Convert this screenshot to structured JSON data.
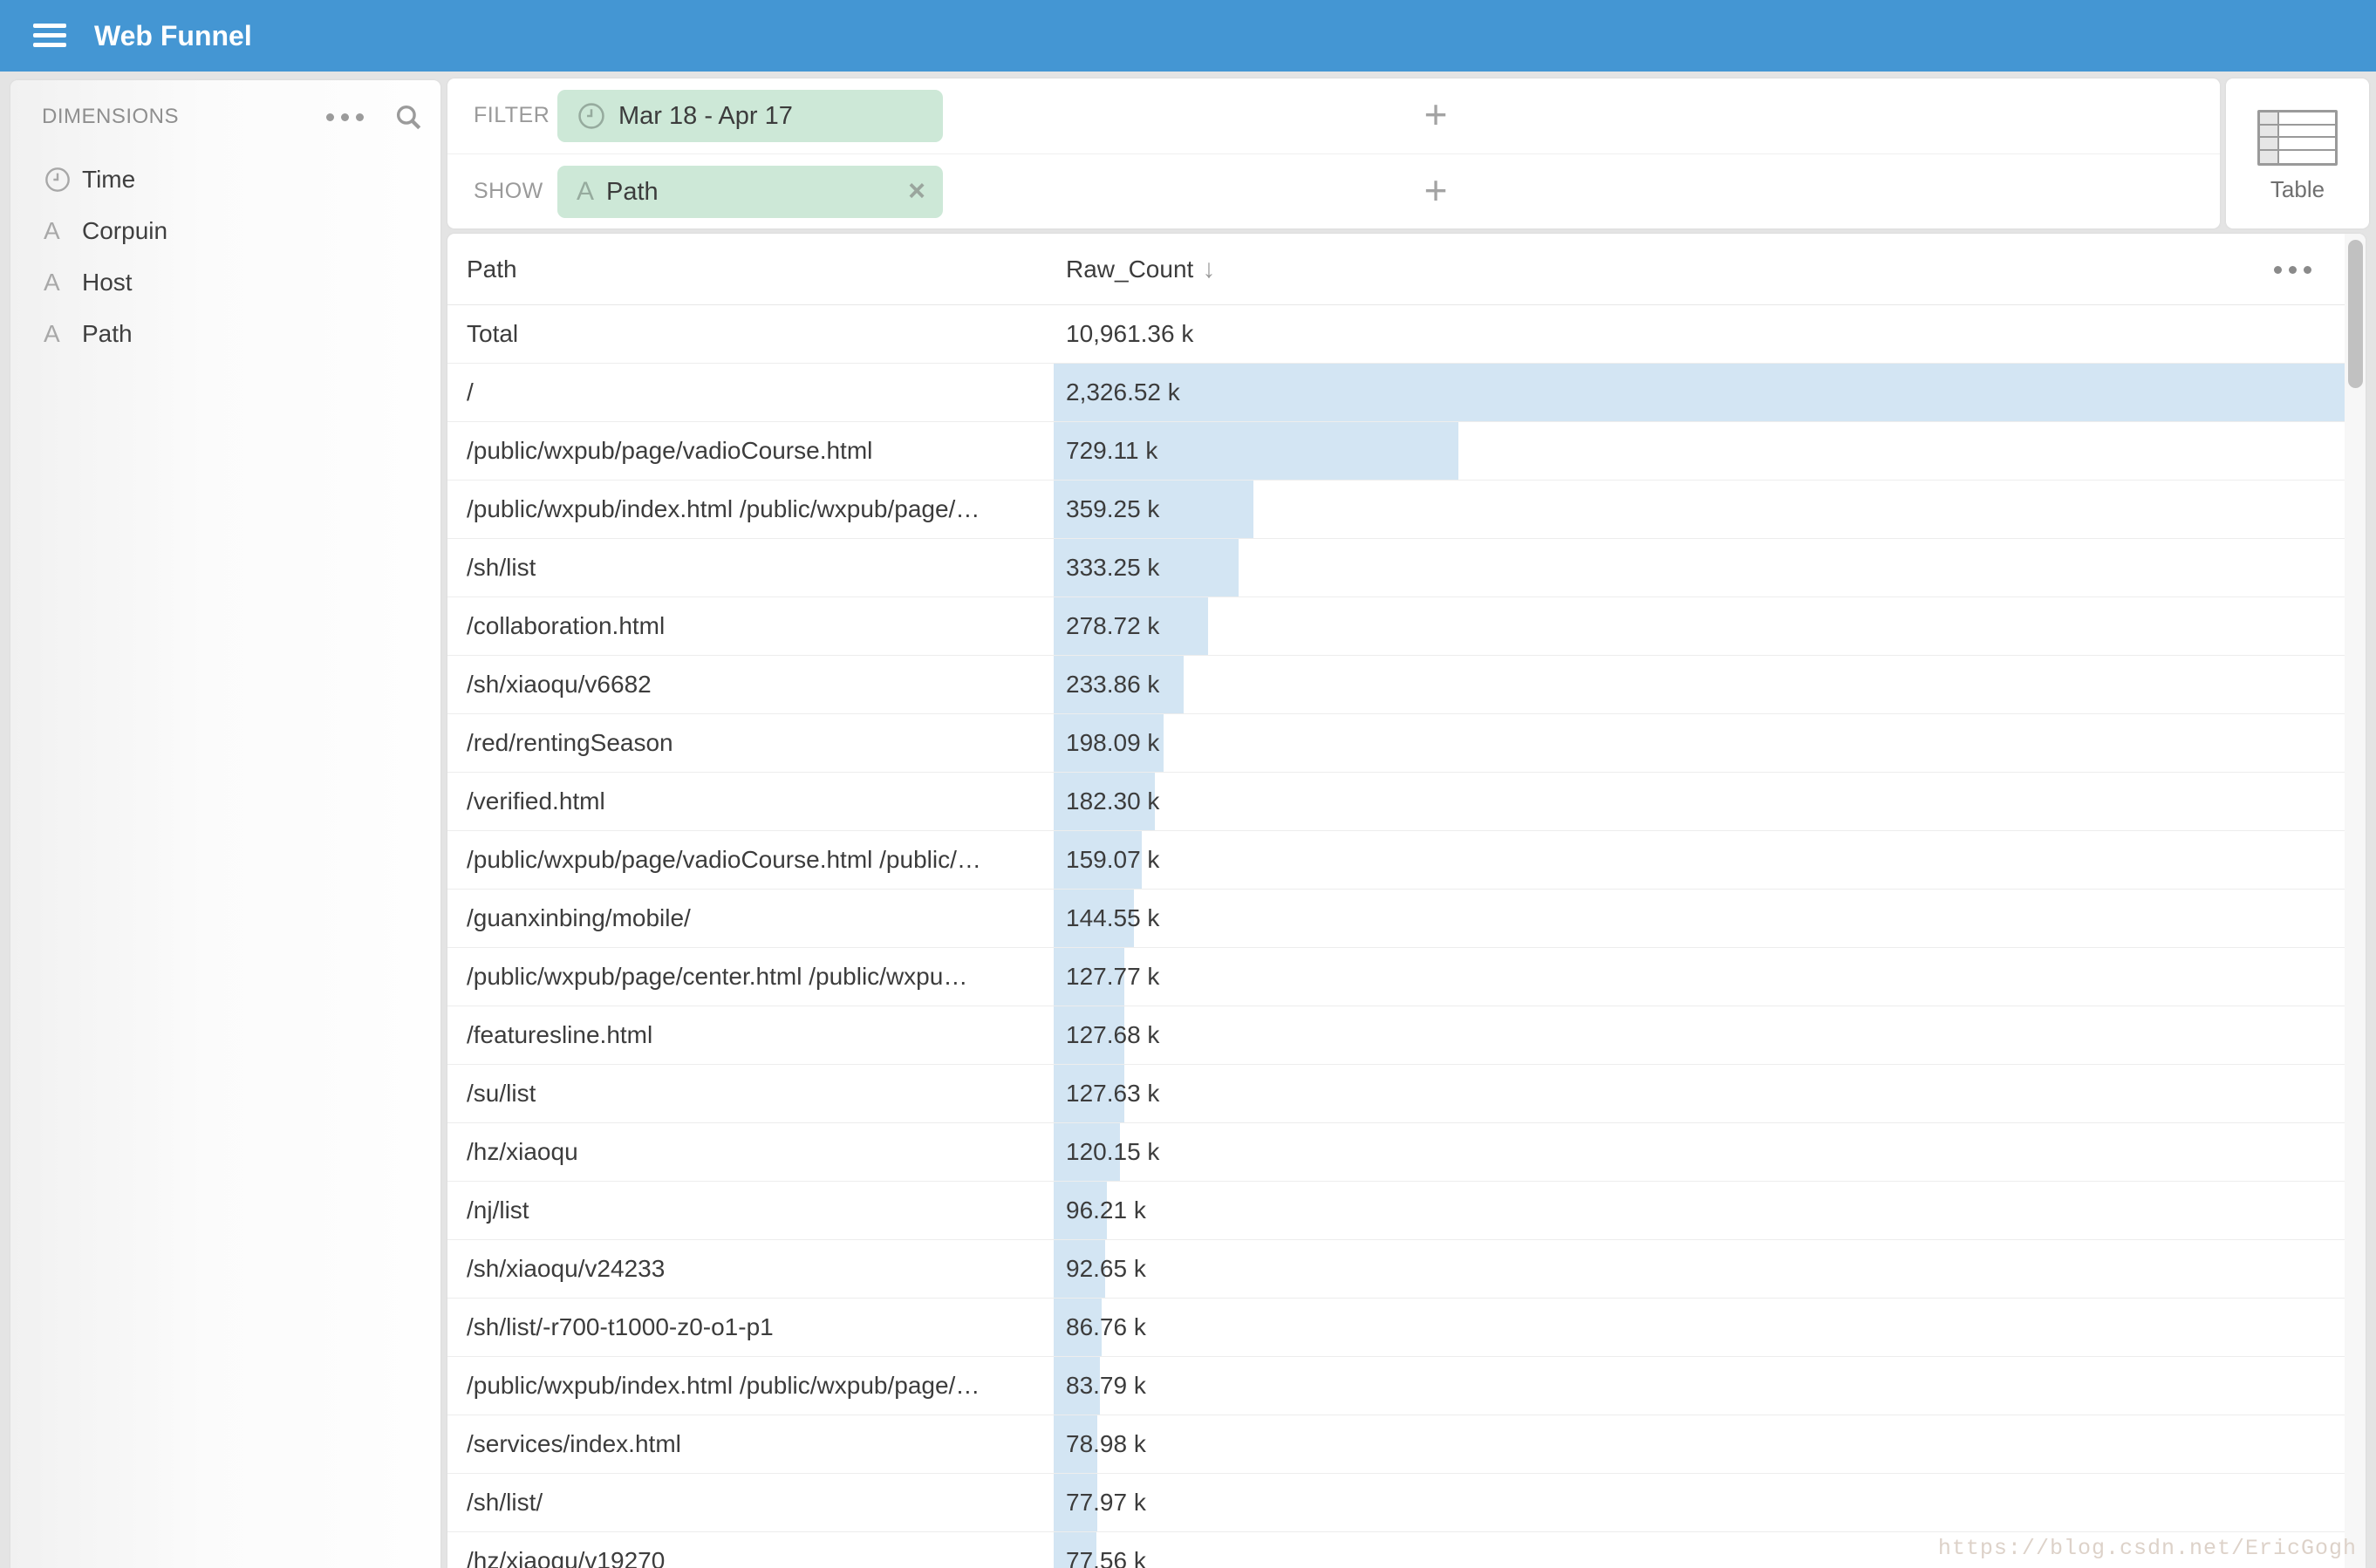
{
  "header": {
    "title": "Web Funnel"
  },
  "sidebar": {
    "title": "DIMENSIONS",
    "items": [
      {
        "label": "Time",
        "icon": "clock"
      },
      {
        "label": "Corpuin",
        "icon": "string"
      },
      {
        "label": "Host",
        "icon": "string"
      },
      {
        "label": "Path",
        "icon": "string"
      }
    ]
  },
  "filter_bar": {
    "filter_label": "FILTER",
    "date_chip": {
      "label": "Mar 18 - Apr 17",
      "icon": "clock"
    },
    "add_filter_label": "+",
    "show_label": "SHOW",
    "show_chip": {
      "label": "Path",
      "icon": "string",
      "close": "×"
    },
    "add_show_label": "+"
  },
  "view_switcher": {
    "table_label": "Table"
  },
  "table": {
    "columns": {
      "path": "Path",
      "count": "Raw_Count"
    },
    "sort_arrow": "↓",
    "sorted_by": "Raw_Count descending",
    "max_value_k": 2326.52,
    "rows": [
      {
        "path": "Total",
        "count": "10,961.36 k",
        "value": null
      },
      {
        "path": "/",
        "count": "2,326.52 k",
        "value": 2326.52
      },
      {
        "path": "/public/wxpub/page/vadioCourse.html",
        "count": "729.11 k",
        "value": 729.11
      },
      {
        "path": "/public/wxpub/index.html /public/wxpub/page/…",
        "count": "359.25 k",
        "value": 359.25
      },
      {
        "path": "/sh/list",
        "count": "333.25 k",
        "value": 333.25
      },
      {
        "path": "/collaboration.html",
        "count": "278.72 k",
        "value": 278.72
      },
      {
        "path": "/sh/xiaoqu/v6682",
        "count": "233.86 k",
        "value": 233.86
      },
      {
        "path": "/red/rentingSeason",
        "count": "198.09 k",
        "value": 198.09
      },
      {
        "path": "/verified.html",
        "count": "182.30 k",
        "value": 182.3
      },
      {
        "path": "/public/wxpub/page/vadioCourse.html /public/…",
        "count": "159.07 k",
        "value": 159.07
      },
      {
        "path": "/guanxinbing/mobile/",
        "count": "144.55 k",
        "value": 144.55
      },
      {
        "path": "/public/wxpub/page/center.html /public/wxpu…",
        "count": "127.77 k",
        "value": 127.77
      },
      {
        "path": "/featuresline.html",
        "count": "127.68 k",
        "value": 127.68
      },
      {
        "path": "/su/list",
        "count": "127.63 k",
        "value": 127.63
      },
      {
        "path": "/hz/xiaoqu",
        "count": "120.15 k",
        "value": 120.15
      },
      {
        "path": "/nj/list",
        "count": "96.21 k",
        "value": 96.21
      },
      {
        "path": "/sh/xiaoqu/v24233",
        "count": "92.65 k",
        "value": 92.65
      },
      {
        "path": "/sh/list/-r700-t1000-z0-o1-p1",
        "count": "86.76 k",
        "value": 86.76
      },
      {
        "path": "/public/wxpub/index.html /public/wxpub/page/…",
        "count": "83.79 k",
        "value": 83.79
      },
      {
        "path": "/services/index.html",
        "count": "78.98 k",
        "value": 78.98
      },
      {
        "path": "/sh/list/",
        "count": "77.97 k",
        "value": 77.97
      },
      {
        "path": "/hz/xiaoqu/v19270",
        "count": "77.56 k",
        "value": 77.56
      }
    ]
  },
  "watermark": "https://blog.csdn.net/EricGogh",
  "colors": {
    "header_blue": "#4496d3",
    "chip_green": "#cde8d7",
    "bar_blue": "#d3e5f3"
  }
}
